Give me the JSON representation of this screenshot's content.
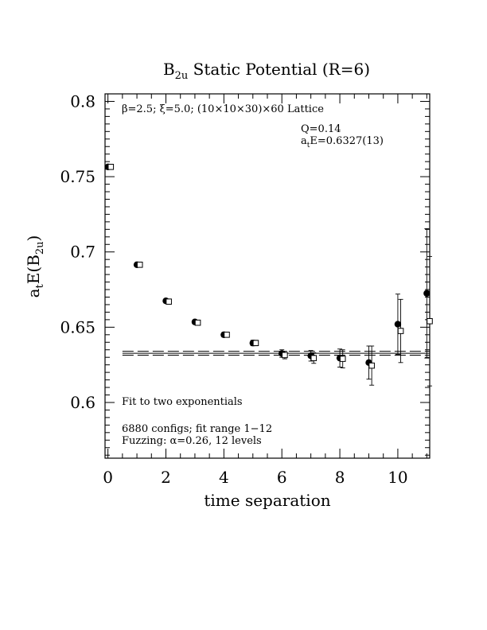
{
  "chart_data": {
    "type": "scatter",
    "title_main": "B",
    "title_sub": "2u",
    "title_rest": " Static Potential (R=6)",
    "ylabel_main": "a",
    "ylabel_sub_t": "t",
    "ylabel_mid": "E(B",
    "ylabel_sub_2u": "2u",
    "ylabel_end": ")",
    "xlabel": "time separation",
    "xlim": [
      -0.1,
      11.1
    ],
    "ylim": [
      0.563,
      0.805
    ],
    "x_ticks": [
      "0",
      "2",
      "4",
      "6",
      "8",
      "10"
    ],
    "y_ticks": [
      "0.6",
      "0.65",
      "0.7",
      "0.75",
      "0.8"
    ],
    "lattice_text": "β=2.5; ξ=5.0; (10×10×30)×60 Lattice",
    "q_text": "Q=0.14",
    "ate_main": "a",
    "ate_sub": "t",
    "ate_rest": "E=0.6327(13)",
    "fit_label": "Fit to two exponentials",
    "configs_text": "6880 configs; fit range 1−12",
    "fuzzing_text": "Fuzzing: α=0.26, 12 levels",
    "fit": {
      "value": 0.6327,
      "error": 0.0013,
      "x_start": 0.5,
      "x_end": 11.1
    },
    "series": [
      {
        "marker": "filled-circle",
        "points": [
          {
            "x": 0,
            "y": 0.7565,
            "err": 0.0008
          },
          {
            "x": 1,
            "y": 0.6915,
            "err": 0.0009
          },
          {
            "x": 2,
            "y": 0.6675,
            "err": 0.001
          },
          {
            "x": 3,
            "y": 0.6535,
            "err": 0.0012
          },
          {
            "x": 4,
            "y": 0.645,
            "err": 0.0015
          },
          {
            "x": 5,
            "y": 0.6395,
            "err": 0.0018
          },
          {
            "x": 6,
            "y": 0.6325,
            "err": 0.0025
          },
          {
            "x": 7,
            "y": 0.631,
            "err": 0.0035
          },
          {
            "x": 8,
            "y": 0.6295,
            "err": 0.006
          },
          {
            "x": 9,
            "y": 0.6265,
            "err": 0.011
          },
          {
            "x": 10,
            "y": 0.652,
            "err": 0.02
          },
          {
            "x": 11,
            "y": 0.6725,
            "err": 0.043
          }
        ]
      },
      {
        "marker": "open-square",
        "points": [
          {
            "x": 0,
            "y": 0.7565,
            "err": 0.0008
          },
          {
            "x": 1,
            "y": 0.6915,
            "err": 0.0009
          },
          {
            "x": 2,
            "y": 0.667,
            "err": 0.001
          },
          {
            "x": 3,
            "y": 0.653,
            "err": 0.0012
          },
          {
            "x": 4,
            "y": 0.645,
            "err": 0.0015
          },
          {
            "x": 5,
            "y": 0.6395,
            "err": 0.0018
          },
          {
            "x": 6,
            "y": 0.6315,
            "err": 0.0025
          },
          {
            "x": 7,
            "y": 0.6295,
            "err": 0.0035
          },
          {
            "x": 8,
            "y": 0.629,
            "err": 0.006
          },
          {
            "x": 9,
            "y": 0.6245,
            "err": 0.013
          },
          {
            "x": 10,
            "y": 0.6475,
            "err": 0.021
          },
          {
            "x": 11,
            "y": 0.654,
            "err": 0.043
          }
        ]
      }
    ]
  }
}
